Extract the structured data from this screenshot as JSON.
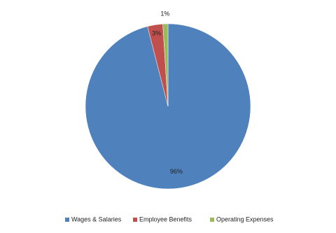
{
  "chart_data": {
    "type": "pie",
    "categories": [
      "Wages & Salaries",
      "Employee Benefits",
      "Operating Expenses"
    ],
    "values": [
      96,
      3,
      1
    ],
    "value_labels": [
      "96%",
      "3%",
      "1%"
    ],
    "colors": [
      "#4f81bd",
      "#c0504d",
      "#9bbb59"
    ],
    "legend": "bottom"
  }
}
